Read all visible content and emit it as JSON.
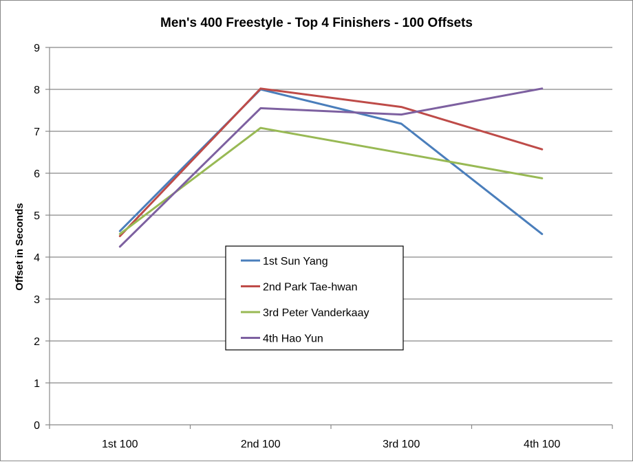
{
  "chart_data": {
    "type": "line",
    "title": "Men's 400 Freestyle - Top 4 Finishers - 100 Offsets",
    "xlabel": "",
    "ylabel": "Offset in Seconds",
    "categories": [
      "1st 100",
      "2nd 100",
      "3rd 100",
      "4th 100"
    ],
    "ylim": [
      0,
      9
    ],
    "yticks": [
      "0",
      "1",
      "2",
      "3",
      "4",
      "5",
      "6",
      "7",
      "8",
      "9"
    ],
    "grid": true,
    "legend_position": "center",
    "series": [
      {
        "name": "1st Sun Yang",
        "color": "#4A7EBB",
        "values": [
          4.62,
          8.0,
          7.18,
          4.55
        ]
      },
      {
        "name": "2nd Park Tae-hwan",
        "color": "#BE4B48",
        "values": [
          4.5,
          8.02,
          7.58,
          6.57
        ]
      },
      {
        "name": "3rd Peter Vanderkaay",
        "color": "#98B954",
        "values": [
          4.55,
          7.08,
          6.48,
          5.88
        ]
      },
      {
        "name": "4th Hao Yun",
        "color": "#7D60A0",
        "values": [
          4.25,
          7.55,
          7.4,
          8.02
        ]
      }
    ]
  }
}
